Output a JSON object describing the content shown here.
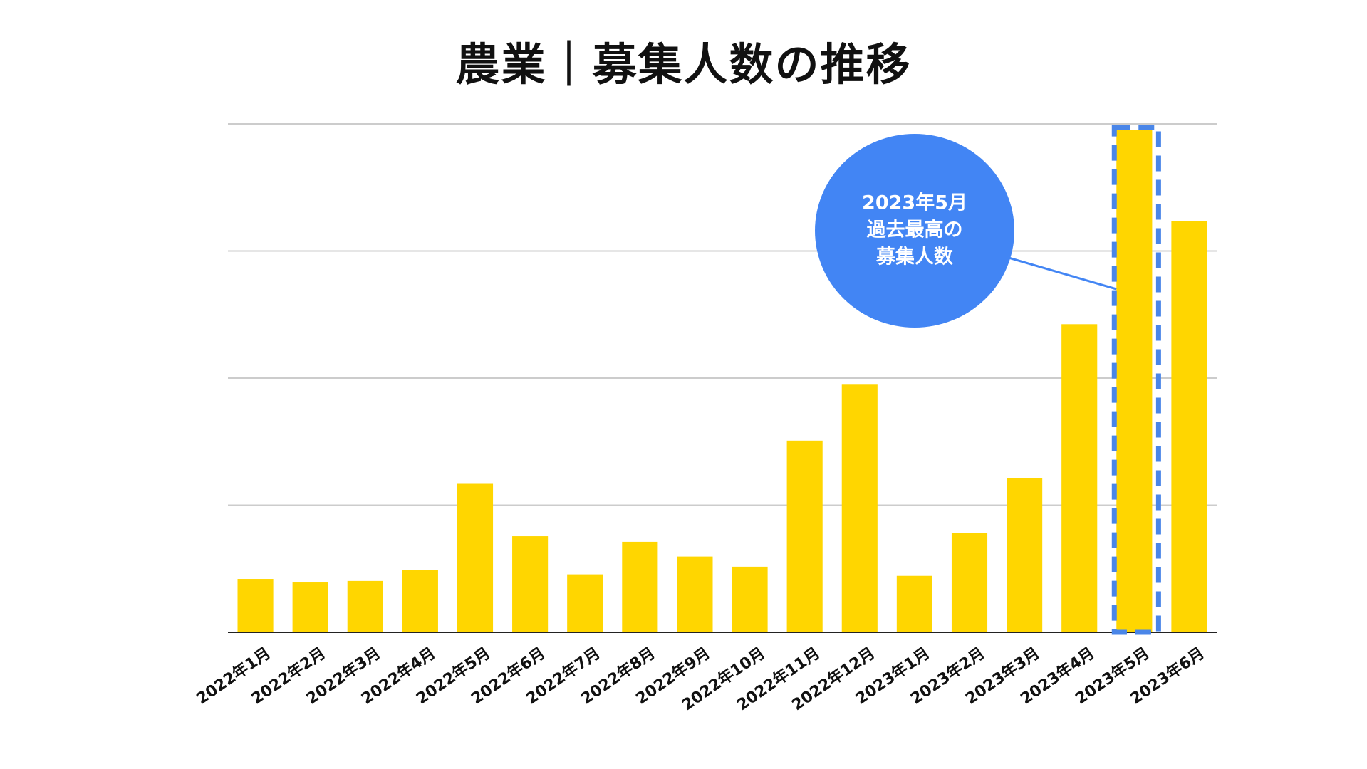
{
  "chart_data": {
    "type": "bar",
    "title": "農業｜募集人数の推移",
    "xlabel": "",
    "ylabel": "",
    "categories": [
      "2022年1月",
      "2022年2月",
      "2022年3月",
      "2022年4月",
      "2022年5月",
      "2022年6月",
      "2022年7月",
      "2022年8月",
      "2022年9月",
      "2022年10月",
      "2022年11月",
      "2022年12月",
      "2023年1月",
      "2023年2月",
      "2023年3月",
      "2023年4月",
      "2023年5月",
      "2023年6月"
    ],
    "values": [
      10.5,
      9.8,
      10.1,
      12.2,
      29.2,
      18.9,
      11.4,
      17.8,
      14.9,
      12.9,
      37.7,
      48.7,
      11.1,
      19.6,
      30.3,
      60.6,
      98.8,
      80.9
    ],
    "ylim": [
      0,
      100
    ],
    "y_gridlines": [
      0,
      25,
      50,
      75,
      100
    ],
    "y_tick_labels_shown": false,
    "grid": true,
    "bar_color": "#FFD600",
    "gridline_color": "#CCCCCC",
    "axis_color": "#222222",
    "highlight": {
      "category": "2023年5月",
      "border_color": "#4A86E8",
      "style": "dashed"
    },
    "annotation": {
      "target": "2023年5月",
      "lines": [
        "2023年5月",
        "過去最高の",
        "募集人数"
      ],
      "bubble_color": "#4285F4",
      "text_color": "#FFFFFF",
      "placement": "upper-right"
    }
  }
}
